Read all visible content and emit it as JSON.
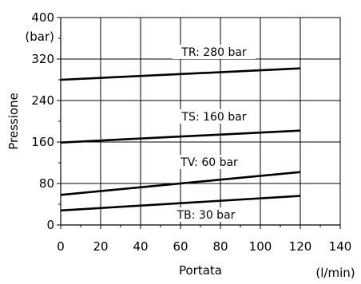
{
  "chart_data": {
    "type": "line",
    "ylabel": "Pressione",
    "y_unit": "(bar)",
    "xlabel": "Portata",
    "x_unit": "(l/min)",
    "xlim": [
      0,
      140
    ],
    "ylim": [
      0,
      400
    ],
    "x_ticks": [
      0,
      20,
      40,
      60,
      80,
      100,
      120,
      140
    ],
    "y_ticks": [
      0,
      80,
      160,
      240,
      320,
      400
    ],
    "grid": true,
    "series": [
      {
        "name": "TR: 280 bar",
        "x": [
          0,
          120
        ],
        "y": [
          280,
          302
        ]
      },
      {
        "name": "TS: 160 bar",
        "x": [
          0,
          120
        ],
        "y": [
          159,
          182
        ]
      },
      {
        "name": "TV: 60 bar",
        "x": [
          0,
          120
        ],
        "y": [
          58,
          102
        ]
      },
      {
        "name": "TB: 30 bar",
        "x": [
          0,
          120
        ],
        "y": [
          28,
          56
        ]
      }
    ]
  }
}
